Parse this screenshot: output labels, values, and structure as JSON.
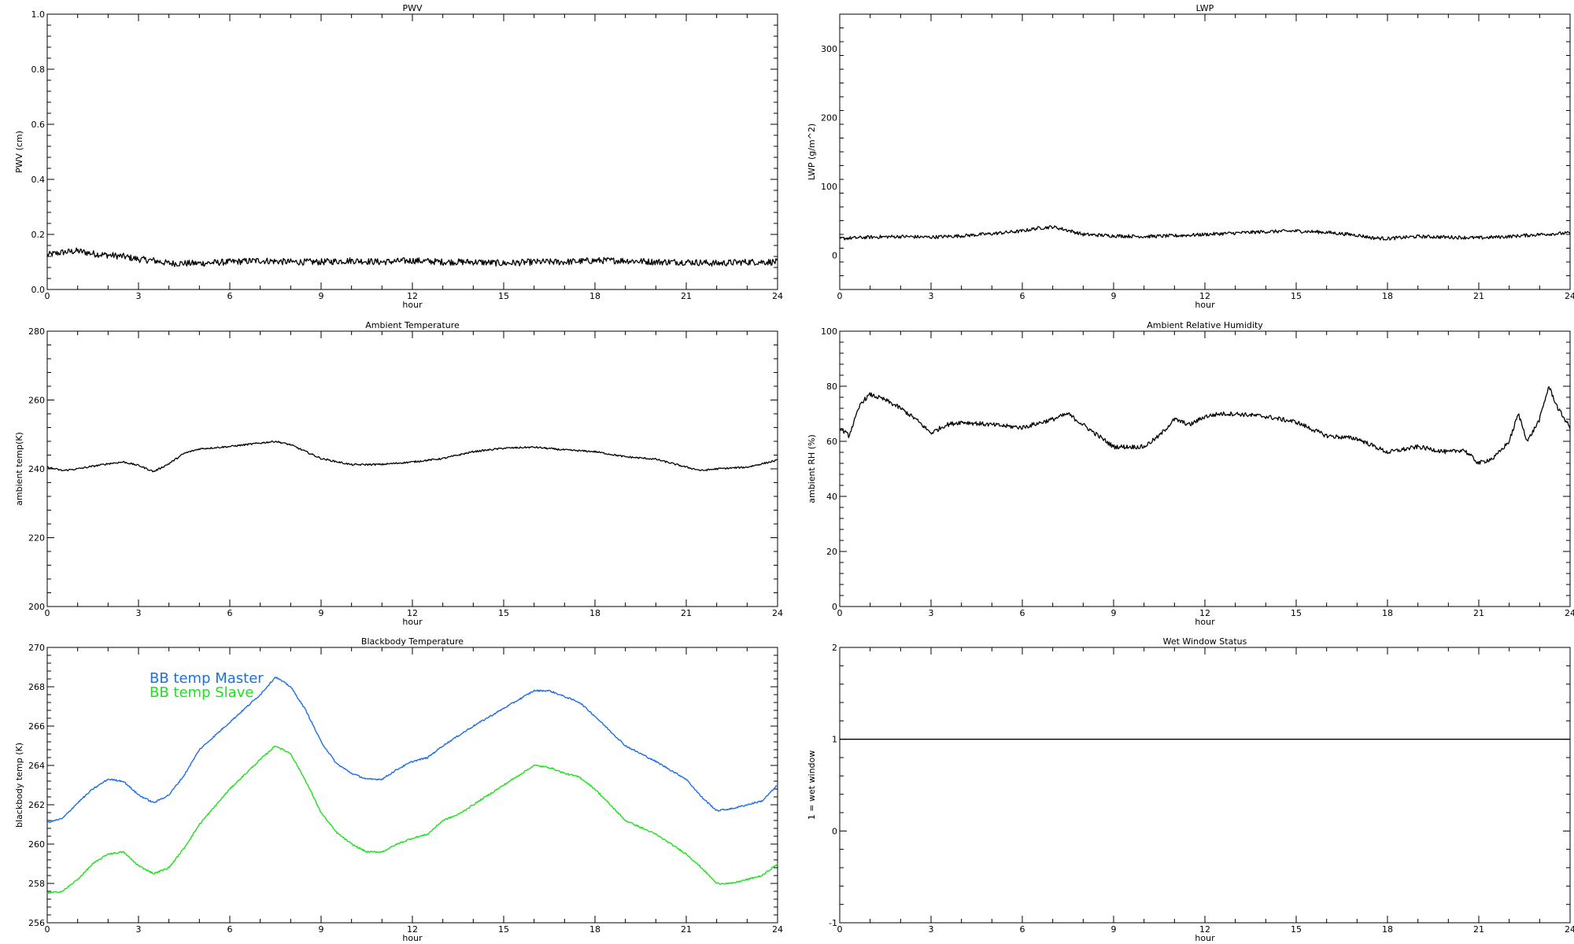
{
  "chart_data": [
    {
      "id": "pwv",
      "type": "line",
      "title": "PWV",
      "xlabel": "hour",
      "ylabel": "PWV (cm)",
      "xlim": [
        0,
        24
      ],
      "ylim": [
        0.0,
        1.0
      ],
      "xticks": [
        0,
        3,
        6,
        9,
        12,
        15,
        18,
        21,
        24
      ],
      "xtick_labels": [
        "0",
        "3",
        "6",
        "9",
        "12",
        "15",
        "18",
        "21",
        "24"
      ],
      "yticks": [
        0.0,
        0.2,
        0.4,
        0.6,
        0.8,
        1.0
      ],
      "ytick_labels": [
        "0.0",
        "0.2",
        "0.4",
        "0.6",
        "0.8",
        "1.0"
      ],
      "series": [
        {
          "color": "#000000",
          "noise": 0.012,
          "x": [
            0,
            0.5,
            1,
            1.5,
            2,
            2.5,
            3,
            3.5,
            4,
            5,
            6,
            7,
            8,
            9,
            10,
            11,
            12,
            13,
            14,
            15,
            16,
            17,
            18,
            19,
            20,
            21,
            22,
            23,
            24
          ],
          "y": [
            0.125,
            0.135,
            0.14,
            0.13,
            0.125,
            0.12,
            0.11,
            0.105,
            0.095,
            0.095,
            0.1,
            0.105,
            0.1,
            0.1,
            0.105,
            0.1,
            0.105,
            0.1,
            0.1,
            0.095,
            0.1,
            0.1,
            0.105,
            0.105,
            0.1,
            0.1,
            0.095,
            0.1,
            0.1
          ]
        }
      ]
    },
    {
      "id": "lwp",
      "type": "line",
      "title": "LWP",
      "xlabel": "hour",
      "ylabel": "LWP (g/m^2)",
      "xlim": [
        0,
        24
      ],
      "ylim": [
        -50,
        350
      ],
      "xticks": [
        0,
        3,
        6,
        9,
        12,
        15,
        18,
        21,
        24
      ],
      "xtick_labels": [
        "0",
        "3",
        "6",
        "9",
        "12",
        "15",
        "18",
        "21",
        "24"
      ],
      "yticks": [
        0,
        100,
        200,
        300
      ],
      "ytick_labels": [
        "0",
        "100",
        "200",
        "300"
      ],
      "series": [
        {
          "color": "#000000",
          "noise": 2.5,
          "x": [
            0,
            1,
            2,
            3,
            4,
            5,
            6,
            6.5,
            7,
            7.5,
            8,
            9,
            10,
            11,
            12,
            13,
            14,
            15,
            16,
            17,
            17.5,
            18,
            19,
            20,
            21,
            22,
            23,
            24
          ],
          "y": [
            24,
            26,
            27,
            26,
            28,
            31,
            35,
            39,
            41,
            36,
            30,
            28,
            27,
            28,
            30,
            32,
            34,
            35,
            33,
            29,
            25,
            24,
            27,
            26,
            25,
            27,
            30,
            32
          ]
        }
      ]
    },
    {
      "id": "ambient_temp",
      "type": "line",
      "title": "Ambient Temperature",
      "xlabel": "hour",
      "ylabel": "ambient temp(K)",
      "xlim": [
        0,
        24
      ],
      "ylim": [
        200,
        280
      ],
      "xticks": [
        0,
        3,
        6,
        9,
        12,
        15,
        18,
        21,
        24
      ],
      "xtick_labels": [
        "0",
        "3",
        "6",
        "9",
        "12",
        "15",
        "18",
        "21",
        "24"
      ],
      "yticks": [
        200,
        220,
        240,
        260,
        280
      ],
      "ytick_labels": [
        "200",
        "220",
        "240",
        "260",
        "280"
      ],
      "series": [
        {
          "color": "#000000",
          "noise": 0.25,
          "x": [
            0,
            0.5,
            1,
            2,
            2.5,
            3,
            3.5,
            4,
            4.5,
            5,
            6,
            7,
            7.5,
            8,
            9,
            10,
            11,
            12,
            13,
            14,
            15,
            16,
            17,
            18,
            19,
            20,
            21,
            21.5,
            22,
            23,
            23.5,
            24
          ],
          "y": [
            240.5,
            239.5,
            240,
            241.5,
            242,
            241,
            239.2,
            241.5,
            244.5,
            245.8,
            246.5,
            247.5,
            248,
            247,
            243,
            241.2,
            241.3,
            242,
            243,
            245,
            246,
            246.3,
            245.5,
            245,
            243.5,
            242.8,
            240.5,
            239.5,
            240,
            240.5,
            241.5,
            242.5
          ]
        }
      ]
    },
    {
      "id": "ambient_rh",
      "type": "line",
      "title": "Ambient Relative Humidity",
      "xlabel": "hour",
      "ylabel": "ambient RH (%)",
      "xlim": [
        0,
        24
      ],
      "ylim": [
        0,
        100
      ],
      "xticks": [
        0,
        3,
        6,
        9,
        12,
        15,
        18,
        21,
        24
      ],
      "xtick_labels": [
        "0",
        "3",
        "6",
        "9",
        "12",
        "15",
        "18",
        "21",
        "24"
      ],
      "yticks": [
        0,
        20,
        40,
        60,
        80,
        100
      ],
      "ytick_labels": [
        "0",
        "20",
        "40",
        "60",
        "80",
        "100"
      ],
      "series": [
        {
          "color": "#000000",
          "noise": 0.8,
          "x": [
            0,
            0.3,
            0.5,
            0.7,
            1,
            1.5,
            2,
            2.5,
            3,
            3.5,
            4,
            5,
            6,
            7,
            7.5,
            8,
            9,
            10,
            10.5,
            11,
            11.5,
            12,
            12.5,
            13,
            14,
            15,
            16,
            17,
            18,
            19,
            20,
            20.5,
            21,
            21.5,
            22,
            22.3,
            22.6,
            23,
            23.3,
            23.6,
            24
          ],
          "y": [
            65,
            62,
            68,
            74,
            77,
            75,
            72,
            68,
            63,
            66,
            67,
            66,
            65,
            68,
            70,
            66,
            58,
            58,
            62,
            68,
            66,
            69,
            70,
            70,
            69,
            67,
            62,
            61,
            56,
            58,
            56,
            57,
            52,
            54,
            60,
            70,
            60,
            68,
            80,
            72,
            65
          ]
        }
      ]
    },
    {
      "id": "blackbody_temp",
      "type": "line",
      "title": "Blackbody Temperature",
      "xlabel": "hour",
      "ylabel": "blackbody temp (K)",
      "xlim": [
        0,
        24
      ],
      "ylim": [
        256,
        270
      ],
      "xticks": [
        0,
        3,
        6,
        9,
        12,
        15,
        18,
        21,
        24
      ],
      "xtick_labels": [
        "0",
        "3",
        "6",
        "9",
        "12",
        "15",
        "18",
        "21",
        "24"
      ],
      "yticks": [
        256,
        258,
        260,
        262,
        264,
        266,
        268,
        270
      ],
      "ytick_labels": [
        "256",
        "258",
        "260",
        "262",
        "264",
        "266",
        "268",
        "270"
      ],
      "legend": {
        "position": "top-left"
      },
      "series": [
        {
          "name": "BB temp Master",
          "color": "#1f6fe0",
          "noise": 0.04,
          "x": [
            0,
            0.5,
            1,
            1.5,
            2,
            2.5,
            3,
            3.5,
            4,
            4.5,
            5,
            6,
            7,
            7.5,
            8,
            8.5,
            9,
            9.5,
            10,
            10.5,
            11,
            11.5,
            12,
            12.5,
            13,
            13.5,
            14,
            15,
            16,
            16.5,
            17,
            17.5,
            18,
            19,
            20,
            21,
            21.5,
            22,
            22.5,
            23,
            23.5,
            24
          ],
          "y": [
            261.1,
            261.3,
            262.1,
            262.8,
            263.3,
            263.2,
            262.5,
            262.1,
            262.5,
            263.5,
            264.8,
            266.2,
            267.6,
            268.5,
            268,
            266.8,
            265.2,
            264.1,
            263.6,
            263.3,
            263.3,
            263.8,
            264.2,
            264.4,
            265,
            265.5,
            266,
            266.9,
            267.8,
            267.8,
            267.5,
            267.2,
            266.5,
            265,
            264.2,
            263.3,
            262.4,
            261.7,
            261.8,
            262,
            262.2,
            263
          ]
        },
        {
          "name": "BB temp Slave",
          "color": "#1ee01e",
          "noise": 0.04,
          "x": [
            0,
            0.5,
            1,
            1.5,
            2,
            2.5,
            3,
            3.5,
            4,
            4.5,
            5,
            6,
            7,
            7.5,
            8,
            8.5,
            9,
            9.5,
            10,
            10.5,
            11,
            11.5,
            12,
            12.5,
            13,
            13.5,
            14,
            15,
            16,
            16.5,
            17,
            17.5,
            18,
            19,
            20,
            21,
            21.5,
            22,
            22.5,
            23,
            23.5,
            24
          ],
          "y": [
            257.5,
            257.6,
            258.2,
            259,
            259.5,
            259.6,
            258.9,
            258.5,
            258.8,
            259.8,
            261,
            262.8,
            264.3,
            265,
            264.6,
            263.2,
            261.6,
            260.6,
            260,
            259.6,
            259.6,
            260,
            260.3,
            260.5,
            261.2,
            261.5,
            262,
            263,
            264,
            263.9,
            263.6,
            263.4,
            262.8,
            261.2,
            260.5,
            259.5,
            258.8,
            258,
            258,
            258.2,
            258.4,
            259
          ]
        }
      ]
    },
    {
      "id": "wet_window",
      "type": "line",
      "title": "Wet Window Status",
      "xlabel": "hour",
      "ylabel": "1 = wet window",
      "xlim": [
        0,
        24
      ],
      "ylim": [
        -1,
        2
      ],
      "xticks": [
        0,
        3,
        6,
        9,
        12,
        15,
        18,
        21,
        24
      ],
      "xtick_labels": [
        "0",
        "3",
        "6",
        "9",
        "12",
        "15",
        "18",
        "21",
        "24"
      ],
      "yticks": [
        -1,
        0,
        1,
        2
      ],
      "ytick_labels": [
        "-1",
        "0",
        "1",
        "2"
      ],
      "series": [
        {
          "color": "#000000",
          "noise": 0,
          "x": [
            0,
            24
          ],
          "y": [
            1,
            1
          ]
        }
      ]
    }
  ]
}
